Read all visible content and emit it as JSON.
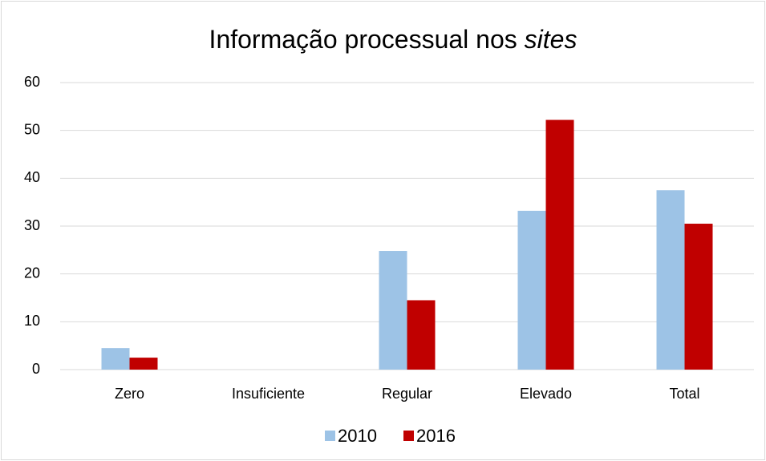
{
  "chart_data": {
    "type": "bar",
    "title": "Informação processual nos sites",
    "categories": [
      "Zero",
      "Insuficiente",
      "Regular",
      "Elevado",
      "Total"
    ],
    "series": [
      {
        "name": "2010",
        "color": "#9dc3e6",
        "values": [
          4.5,
          0,
          24.8,
          33.2,
          37.5
        ]
      },
      {
        "name": "2016",
        "color": "#c00000",
        "values": [
          2.5,
          0,
          14.5,
          52.2,
          30.5
        ]
      }
    ],
    "ylim": [
      0,
      60
    ],
    "yticks": [
      0,
      10,
      20,
      30,
      40,
      50,
      60
    ],
    "grid": true,
    "legend": "bottom"
  }
}
